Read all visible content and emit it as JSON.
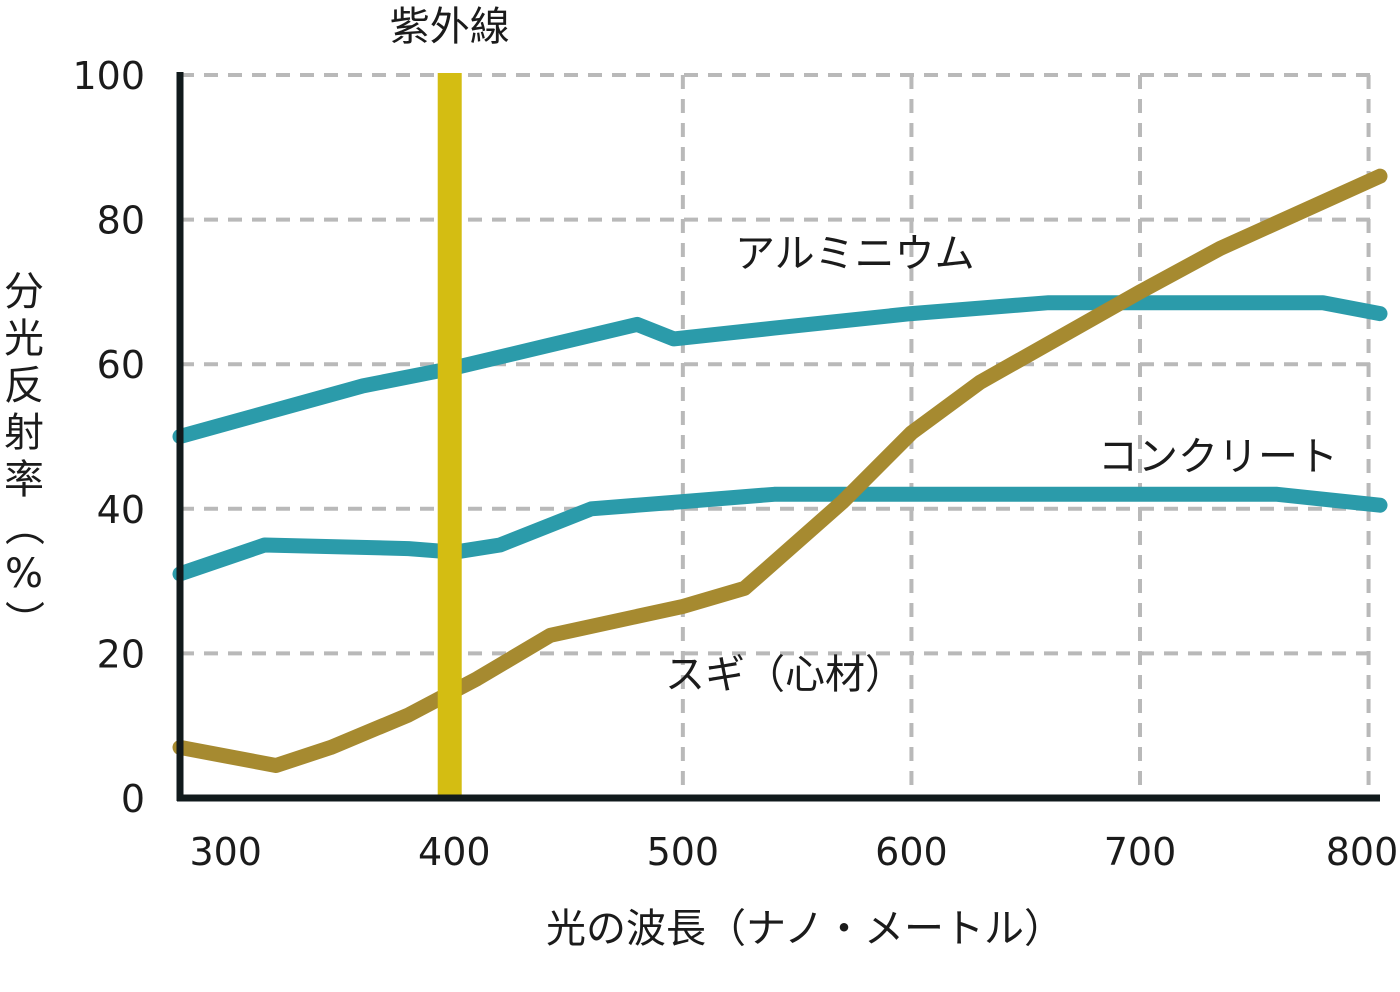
{
  "chart_data": {
    "type": "line",
    "title": "",
    "xlabel": "光の波長（ナノ・メートル）",
    "ylabel": "分光反射率（%）",
    "xlim": [
      280,
      805
    ],
    "ylim": [
      0,
      100
    ],
    "x_ticks": [
      300,
      400,
      500,
      600,
      700,
      800
    ],
    "y_ticks": [
      0,
      20,
      40,
      60,
      80,
      100
    ],
    "grid": true,
    "grid_style": "dashed",
    "series": [
      {
        "name": "アルミニウム",
        "color": "#2b9baa",
        "points": [
          [
            280,
            50
          ],
          [
            320,
            53.5
          ],
          [
            360,
            57
          ],
          [
            400,
            59.5
          ],
          [
            440,
            62.5
          ],
          [
            480,
            65.5
          ],
          [
            496,
            63.5
          ],
          [
            540,
            65
          ],
          [
            600,
            67
          ],
          [
            660,
            68.5
          ],
          [
            700,
            68.5
          ],
          [
            780,
            68.5
          ],
          [
            805,
            67
          ]
        ]
      },
      {
        "name": "コンクリート",
        "color": "#2b9baa",
        "points": [
          [
            280,
            31
          ],
          [
            317,
            35
          ],
          [
            380,
            34.5
          ],
          [
            400,
            34
          ],
          [
            420,
            35
          ],
          [
            460,
            40
          ],
          [
            500,
            41
          ],
          [
            540,
            42
          ],
          [
            600,
            42
          ],
          [
            700,
            42
          ],
          [
            760,
            42
          ],
          [
            805,
            40.5
          ]
        ]
      },
      {
        "name": "スギ（心材）",
        "color": "#a68a30",
        "points": [
          [
            280,
            7
          ],
          [
            322,
            4.5
          ],
          [
            346,
            7
          ],
          [
            380,
            11.5
          ],
          [
            410,
            16.5
          ],
          [
            442,
            22.5
          ],
          [
            500,
            26.5
          ],
          [
            527,
            29
          ],
          [
            570,
            41
          ],
          [
            600,
            50.5
          ],
          [
            630,
            57.5
          ],
          [
            700,
            70
          ],
          [
            735,
            76
          ],
          [
            805,
            86
          ]
        ]
      }
    ],
    "uv_band": {
      "label": "紫外線",
      "x": 398,
      "color": "#d4bd12"
    }
  }
}
